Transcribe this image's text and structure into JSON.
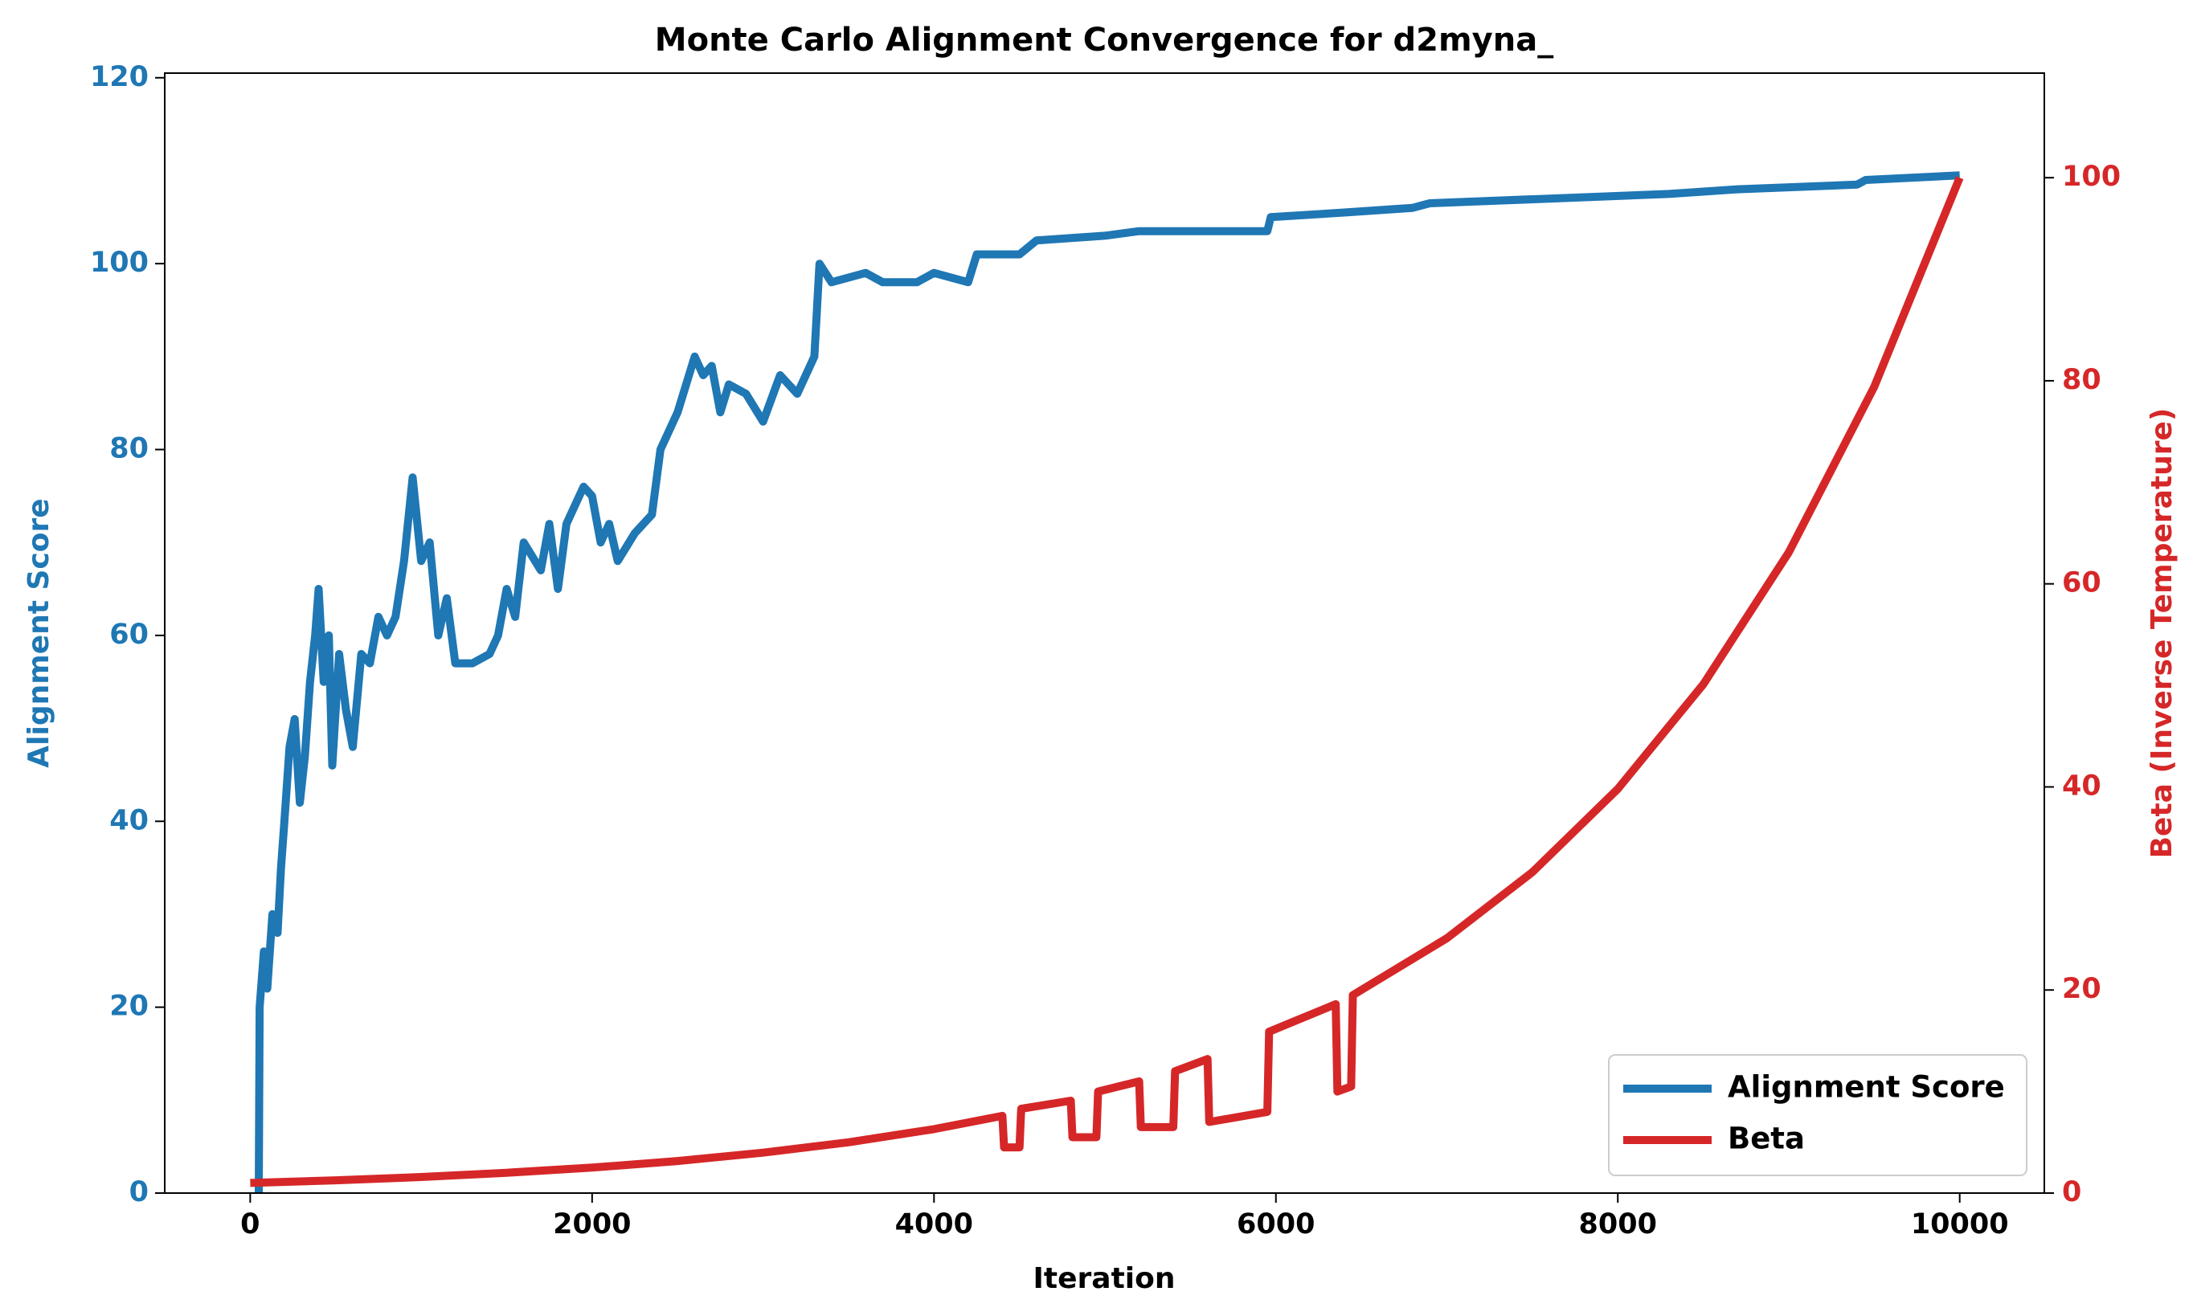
{
  "chart_data": {
    "type": "line",
    "title": "Monte Carlo Alignment Convergence for d2myna_",
    "x_label": "Iteration",
    "y_label": "Alignment Score",
    "y2_label": "Beta (Inverse Temperature)",
    "xlim": [
      -500,
      10495
    ],
    "xticks": [
      0,
      2000,
      4000,
      6000,
      8000,
      10000
    ],
    "ylim": [
      0,
      120.5
    ],
    "yticks": [
      0,
      20,
      40,
      60,
      80,
      100,
      120
    ],
    "y2lim": [
      0,
      110.3
    ],
    "y2ticks": [
      0,
      20,
      40,
      60,
      80,
      100
    ],
    "legend": "lower right",
    "series": [
      {
        "name": "Alignment Score",
        "color": "#1f77b4",
        "axis": "y",
        "x": [
          50,
          55,
          80,
          100,
          130,
          160,
          180,
          200,
          230,
          260,
          290,
          320,
          350,
          380,
          400,
          430,
          460,
          480,
          520,
          560,
          600,
          650,
          700,
          750,
          800,
          850,
          900,
          950,
          1000,
          1050,
          1100,
          1150,
          1200,
          1300,
          1400,
          1450,
          1500,
          1550,
          1600,
          1700,
          1750,
          1800,
          1850,
          1950,
          2000,
          2050,
          2100,
          2150,
          2250,
          2350,
          2400,
          2500,
          2600,
          2650,
          2700,
          2750,
          2800,
          2900,
          3000,
          3100,
          3200,
          3300,
          3330,
          3400,
          3600,
          3700,
          3900,
          4000,
          4200,
          4250,
          4500,
          4600,
          5000,
          5200,
          5600,
          5950,
          5970,
          6400,
          6800,
          6900,
          7600,
          8300,
          8700,
          9400,
          9450,
          10000
        ],
        "values": [
          0,
          20,
          26,
          22,
          30,
          28,
          35,
          40,
          48,
          51,
          42,
          47,
          55,
          60,
          65,
          55,
          60,
          46,
          58,
          52,
          48,
          58,
          57,
          62,
          60,
          62,
          68,
          77,
          68,
          70,
          60,
          64,
          57,
          57,
          58,
          60,
          65,
          62,
          70,
          67,
          72,
          65,
          72,
          76,
          75,
          70,
          72,
          68,
          71,
          73,
          80,
          84,
          90,
          88,
          89,
          84,
          87,
          86,
          83,
          88,
          86,
          90,
          100,
          98,
          99,
          98,
          98,
          99,
          98,
          101,
          101,
          102.5,
          103,
          103.5,
          103.5,
          103.5,
          105,
          105.5,
          106,
          106.5,
          107,
          107.5,
          108,
          108.5,
          109,
          109.5
        ]
      },
      {
        "name": "Beta",
        "color": "#d62728",
        "axis": "y2",
        "x": [
          0,
          500,
          1000,
          1500,
          2000,
          2500,
          3000,
          3500,
          4000,
          4400,
          4410,
          4500,
          4510,
          4800,
          4810,
          4950,
          4960,
          5200,
          5210,
          5400,
          5410,
          5600,
          5610,
          5950,
          5960,
          6350,
          6360,
          6440,
          6450,
          7000,
          7500,
          8000,
          8500,
          9000,
          9500,
          10000
        ],
        "values": [
          1,
          1.26,
          1.58,
          2.0,
          2.51,
          3.16,
          3.98,
          5.0,
          6.3,
          7.6,
          4.5,
          4.5,
          8.3,
          9.1,
          5.5,
          5.5,
          10.0,
          11.0,
          6.5,
          6.5,
          12.0,
          13.2,
          7.0,
          8.0,
          15.9,
          18.6,
          10.0,
          10.5,
          19.5,
          25.1,
          31.6,
          39.8,
          50.1,
          63.1,
          79.4,
          100
        ]
      }
    ]
  }
}
